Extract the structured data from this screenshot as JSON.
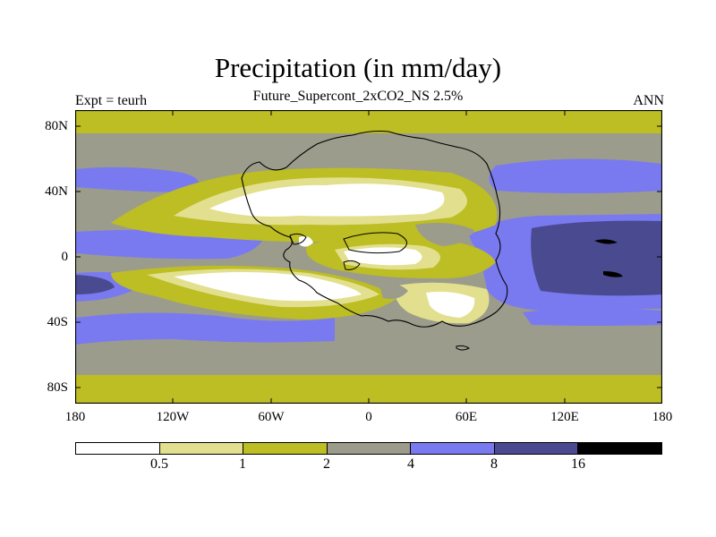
{
  "header": {
    "title": "Precipitation (in mm/day)",
    "subtitle": "Future_Supercont_2xCO2_NS 2.5%",
    "left": "Expt = teurh",
    "right": "ANN"
  },
  "axes": {
    "y_ticks": [
      "80N",
      "40N",
      "0",
      "40S",
      "80S"
    ],
    "x_ticks": [
      "180",
      "120W",
      "60W",
      "0",
      "60E",
      "120E",
      "180"
    ]
  },
  "colorbar": {
    "colors": [
      "#ffffff",
      "#e2e08e",
      "#bdbd24",
      "#9c9c8c",
      "#7a7af0",
      "#4a4a90",
      "#000000"
    ],
    "labels": [
      "0.5",
      "1",
      "2",
      "4",
      "8",
      "16"
    ]
  },
  "map": {
    "projection": "cylindrical equidistant",
    "lon_range": [
      -180,
      180
    ],
    "lat_range": [
      -90,
      90
    ],
    "variable": "annual mean precipitation",
    "feature": "supercontinent outline"
  }
}
